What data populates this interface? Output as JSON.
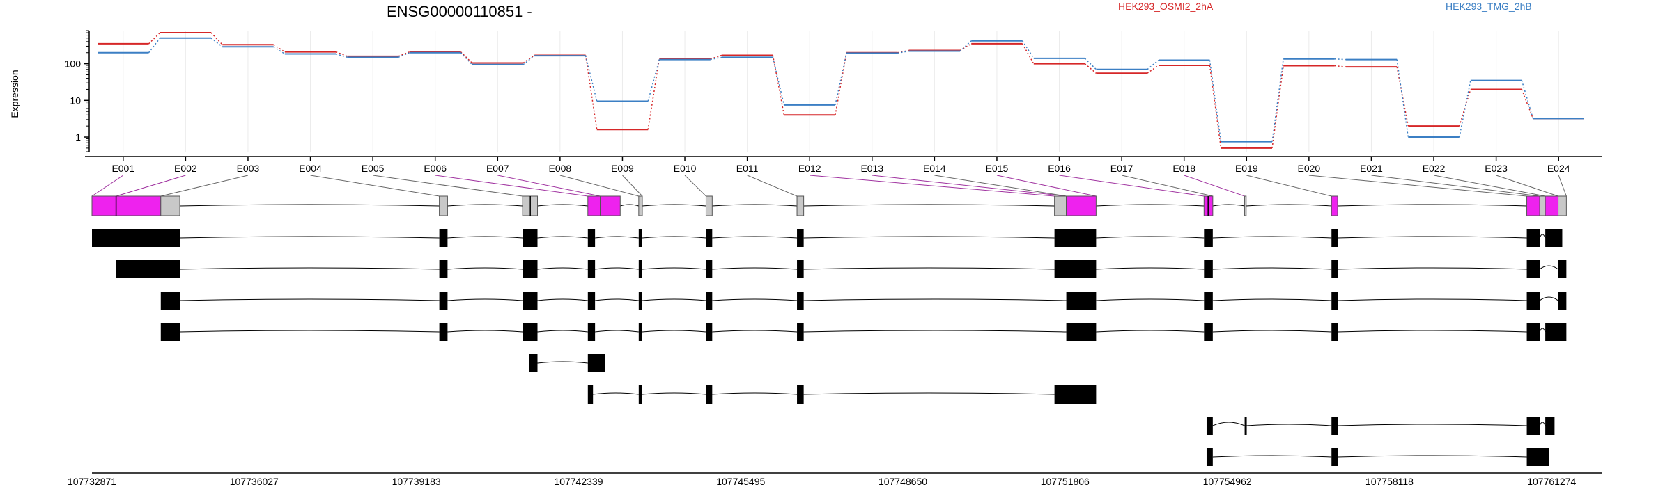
{
  "chart_data": {
    "type": "line",
    "title": "ENSG00000110851 -",
    "ylabel": "Expression",
    "y_scale": "log",
    "ylim": [
      0.4,
      800
    ],
    "y_ticks": [
      {
        "value": 1,
        "label": "1"
      },
      {
        "value": 10,
        "label": "10"
      },
      {
        "value": 100,
        "label": "100"
      }
    ],
    "grid": true,
    "legend_position": "top-right",
    "colors": {
      "red": "#d62728",
      "blue": "#3b7fc4",
      "exon_highlight": "#ee22ee",
      "exon_plain": "#c8c8c8",
      "exon_black": "#000000"
    },
    "exons": [
      "E001",
      "E002",
      "E003",
      "E004",
      "E005",
      "E006",
      "E007",
      "E008",
      "E009",
      "E010",
      "E011",
      "E012",
      "E013",
      "E014",
      "E015",
      "E016",
      "E017",
      "E018",
      "E019",
      "E020",
      "E021",
      "E022",
      "E023",
      "E024"
    ],
    "series": [
      {
        "name": "HEK293_OSMI2_2hA",
        "color": "#d62728",
        "values": [
          350,
          700,
          330,
          210,
          160,
          210,
          105,
          170,
          1.6,
          135,
          170,
          4,
          200,
          230,
          350,
          100,
          55,
          90,
          0.5,
          88,
          82,
          2,
          20,
          3.2
        ]
      },
      {
        "name": "HEK293_TMG_2hB",
        "color": "#3b7fc4",
        "values": [
          200,
          500,
          290,
          185,
          150,
          200,
          95,
          165,
          9.5,
          130,
          150,
          7.5,
          195,
          220,
          420,
          140,
          70,
          125,
          0.75,
          135,
          130,
          1,
          35,
          3.2
        ]
      }
    ],
    "genomic_axis": {
      "start": 107732871,
      "end": 107762260,
      "tick_labels": [
        "107732871",
        "107736027",
        "107739183",
        "107742339",
        "107745495",
        "107748650",
        "107751806",
        "107754962",
        "107758118",
        "107761274"
      ]
    },
    "gene_model": {
      "exon_spans": [
        [
          107732871,
          107733340
        ],
        [
          107733340,
          107734210
        ],
        [
          107734210,
          107734580
        ],
        [
          107739630,
          107739790
        ],
        [
          107741250,
          107741540
        ],
        [
          107742520,
          107742760
        ],
        [
          107742760,
          107743150
        ],
        [
          107743510,
          107743580
        ],
        [
          107744820,
          107744940
        ],
        [
          107746590,
          107746720
        ],
        [
          107751600,
          107751830
        ],
        [
          107751830,
          107752410
        ],
        [
          107754510,
          107754680
        ],
        [
          107755300,
          107755330
        ],
        [
          107756990,
          107757110
        ],
        [
          107760790,
          107761040
        ],
        [
          107761040,
          107761150
        ],
        [
          107761150,
          107761400
        ],
        [
          107761400,
          107761560
        ]
      ],
      "exon_colors": [
        "magenta",
        "magenta",
        "grey",
        "grey",
        "grey",
        "magenta",
        "magenta",
        "grey",
        "grey",
        "grey",
        "grey",
        "magenta",
        "magenta",
        "grey",
        "magenta",
        "magenta",
        "grey",
        "magenta",
        "grey"
      ],
      "exon_ticks": [
        107733340,
        107741400,
        107754590
      ]
    },
    "transcripts": [
      {
        "exons": [
          [
            107732871,
            107734580
          ],
          [
            107739630,
            107739790
          ],
          [
            107741250,
            107741540
          ],
          [
            107742520,
            107742660
          ],
          [
            107743510,
            107743580
          ],
          [
            107744820,
            107744940
          ],
          [
            107746590,
            107746720
          ],
          [
            107751600,
            107752410
          ],
          [
            107754510,
            107754680
          ],
          [
            107756990,
            107757110
          ],
          [
            107760790,
            107761040
          ],
          [
            107761150,
            107761480
          ]
        ]
      },
      {
        "exons": [
          [
            107733340,
            107734580
          ],
          [
            107739630,
            107739790
          ],
          [
            107741250,
            107741540
          ],
          [
            107742520,
            107742660
          ],
          [
            107743510,
            107743580
          ],
          [
            107744820,
            107744940
          ],
          [
            107746590,
            107746720
          ],
          [
            107751600,
            107752410
          ],
          [
            107754510,
            107754680
          ],
          [
            107756990,
            107757110
          ],
          [
            107760790,
            107761040
          ],
          [
            107761400,
            107761560
          ]
        ]
      },
      {
        "exons": [
          [
            107734210,
            107734580
          ],
          [
            107739630,
            107739790
          ],
          [
            107741250,
            107741540
          ],
          [
            107742520,
            107742660
          ],
          [
            107743510,
            107743580
          ],
          [
            107744820,
            107744940
          ],
          [
            107746590,
            107746720
          ],
          [
            107751830,
            107752410
          ],
          [
            107754510,
            107754680
          ],
          [
            107756990,
            107757110
          ],
          [
            107760790,
            107761040
          ],
          [
            107761400,
            107761560
          ]
        ]
      },
      {
        "exons": [
          [
            107734210,
            107734580
          ],
          [
            107739630,
            107739790
          ],
          [
            107741250,
            107741540
          ],
          [
            107742520,
            107742660
          ],
          [
            107743510,
            107743580
          ],
          [
            107744820,
            107744940
          ],
          [
            107746590,
            107746720
          ],
          [
            107751830,
            107752410
          ],
          [
            107754510,
            107754680
          ],
          [
            107756990,
            107757110
          ],
          [
            107760790,
            107761040
          ],
          [
            107761150,
            107761560
          ]
        ]
      },
      {
        "exons": [
          [
            107741380,
            107741540
          ],
          [
            107742520,
            107742860
          ]
        ]
      },
      {
        "exons": [
          [
            107742520,
            107742620
          ],
          [
            107743510,
            107743580
          ],
          [
            107744820,
            107744940
          ],
          [
            107746590,
            107746720
          ],
          [
            107751600,
            107752410
          ]
        ]
      },
      {
        "exons": [
          [
            107754560,
            107754680
          ],
          [
            107755300,
            107755330
          ],
          [
            107756990,
            107757110
          ],
          [
            107760790,
            107761040
          ],
          [
            107761150,
            107761330
          ]
        ]
      },
      {
        "exons": [
          [
            107754560,
            107754680
          ],
          [
            107756990,
            107757110
          ],
          [
            107760790,
            107761220
          ]
        ]
      }
    ]
  }
}
